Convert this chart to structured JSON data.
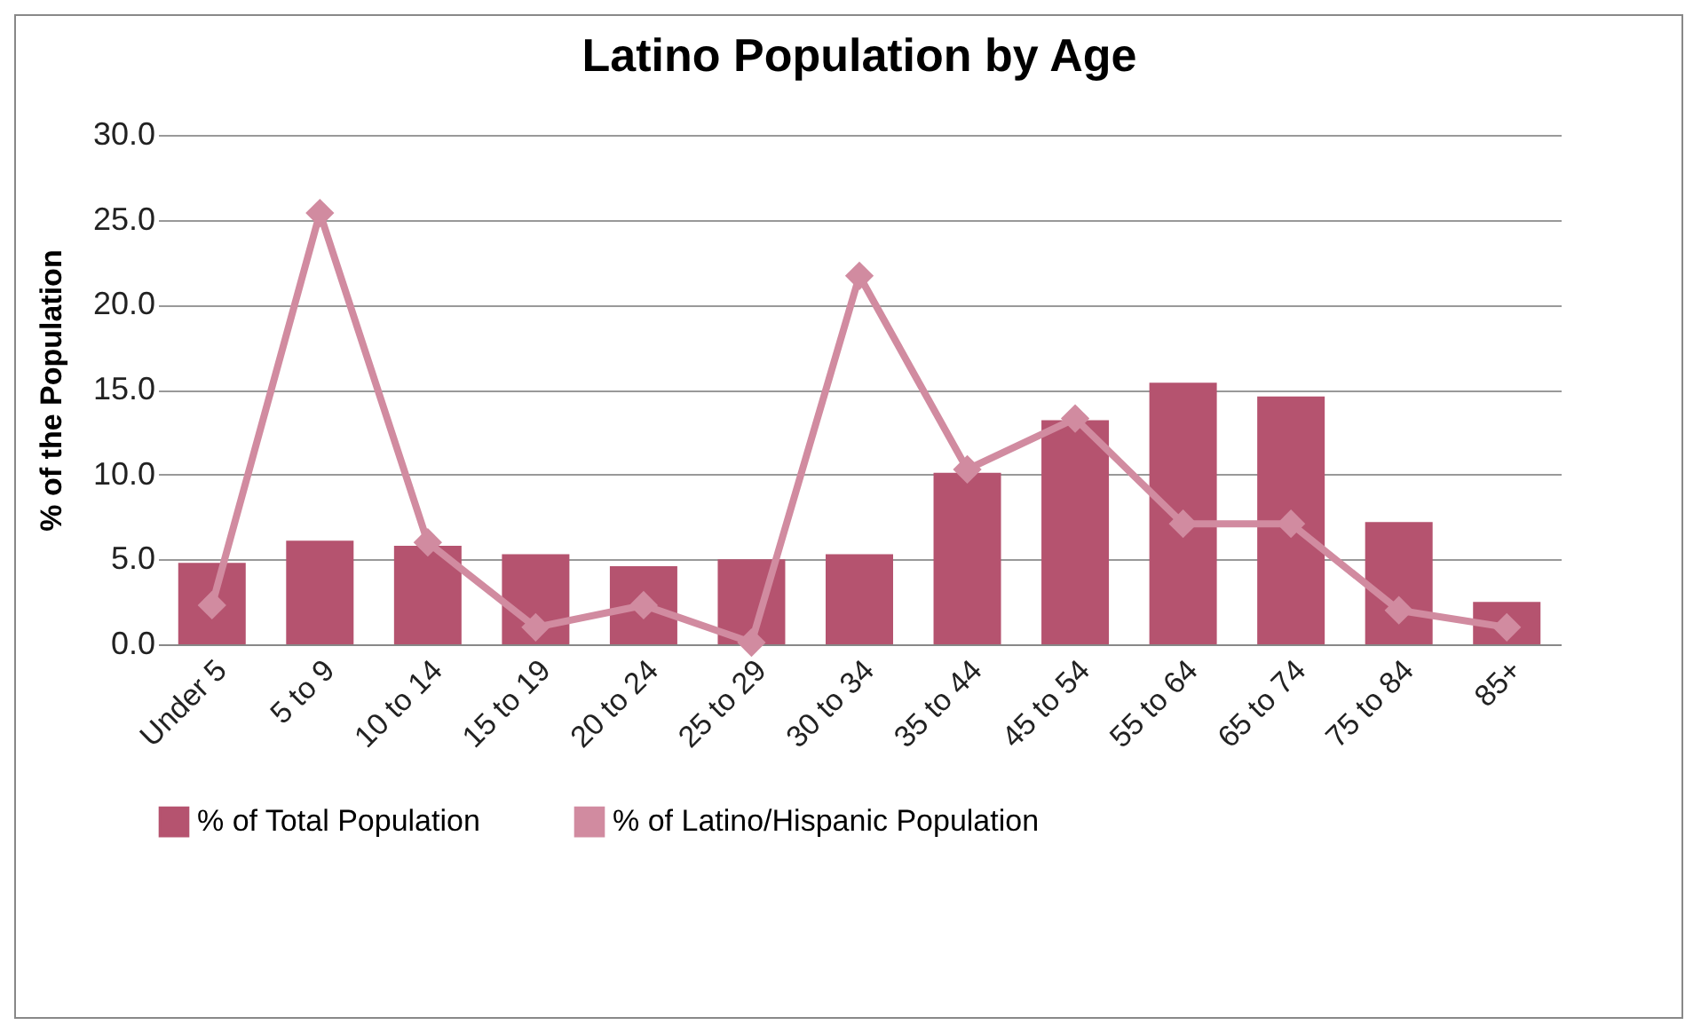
{
  "chart_data": {
    "type": "bar",
    "title": "Latino Population by Age",
    "ylabel": "% of the Population",
    "categories": [
      "Under 5",
      "5 to 9",
      "10 to 14",
      "15 to 19",
      "20 to 24",
      "25 to 29",
      "30 to 34",
      "35 to 44",
      "45 to 54",
      "55 to 64",
      "65 to 74",
      "75 to 84",
      "85+"
    ],
    "series": [
      {
        "name": "% of Total Population",
        "color": "#b5536f",
        "values": [
          4.8,
          6.1,
          5.8,
          5.3,
          4.6,
          5.0,
          5.3,
          10.1,
          13.2,
          15.4,
          14.6,
          7.2,
          2.5
        ]
      },
      {
        "name": "% of Latino/Hispanic Population",
        "type": "line",
        "color": "#d18ba0",
        "values": [
          2.3,
          25.4,
          6.0,
          1.0,
          2.3,
          0.1,
          21.7,
          10.3,
          13.3,
          7.1,
          7.1,
          2.0,
          1.0
        ]
      }
    ],
    "ylim": [
      0,
      30
    ],
    "yticks": [
      {
        "value": 0,
        "label": "0.0"
      },
      {
        "value": 5,
        "label": "5.0"
      },
      {
        "value": 10,
        "label": "10.0"
      },
      {
        "value": 15,
        "label": "15.0"
      },
      {
        "value": 20,
        "label": "20.0"
      },
      {
        "value": 25,
        "label": "25.0"
      },
      {
        "value": 30,
        "label": "30.0"
      }
    ],
    "grid": "y",
    "legend": "bottom",
    "marker": "diamond"
  }
}
